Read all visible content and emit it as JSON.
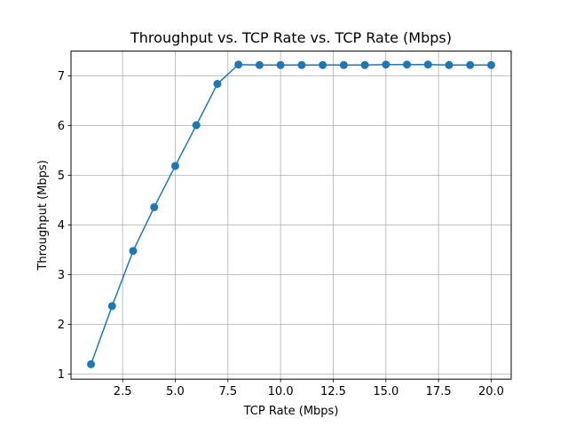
{
  "chart_data": {
    "type": "line",
    "title": "Throughput vs. TCP Rate vs. TCP Rate (Mbps)",
    "xlabel": "TCP Rate (Mbps)",
    "ylabel": "Throughput (Mbps)",
    "xlim": [
      0.05,
      20.95
    ],
    "ylim": [
      0.9,
      7.5
    ],
    "xticks": [
      2.5,
      5.0,
      7.5,
      10.0,
      12.5,
      15.0,
      17.5,
      20.0
    ],
    "xtick_labels": [
      "2.5",
      "5.0",
      "7.5",
      "10.0",
      "12.5",
      "15.0",
      "17.5",
      "20.0"
    ],
    "yticks": [
      1,
      2,
      3,
      4,
      5,
      6,
      7
    ],
    "ytick_labels": [
      "1",
      "2",
      "3",
      "4",
      "5",
      "6",
      "7"
    ],
    "grid": true,
    "line_color": "#1f77b4",
    "series": [
      {
        "x": [
          1,
          2,
          3,
          4,
          5,
          6,
          7,
          8,
          9,
          10,
          11,
          12,
          13,
          14,
          15,
          16,
          17,
          18,
          19,
          20
        ],
        "y": [
          1.2,
          2.37,
          3.48,
          4.36,
          5.19,
          6.01,
          6.84,
          7.23,
          7.22,
          7.22,
          7.22,
          7.22,
          7.22,
          7.22,
          7.23,
          7.23,
          7.23,
          7.22,
          7.22,
          7.22
        ]
      }
    ]
  }
}
